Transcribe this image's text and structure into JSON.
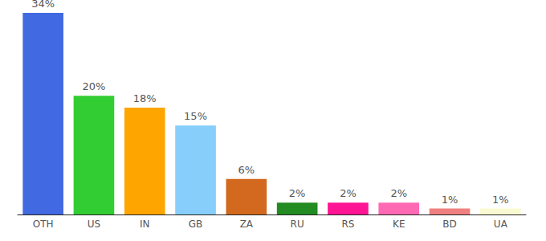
{
  "chart_data": {
    "type": "bar",
    "categories": [
      "OTH",
      "US",
      "IN",
      "GB",
      "ZA",
      "RU",
      "RS",
      "KE",
      "BD",
      "UA"
    ],
    "values": [
      34,
      20,
      18,
      15,
      6,
      2,
      2,
      2,
      1,
      1
    ],
    "value_labels": [
      "34%",
      "20%",
      "18%",
      "15%",
      "6%",
      "2%",
      "2%",
      "2%",
      "1%",
      "1%"
    ],
    "colors": [
      "#4169e1",
      "#32cd32",
      "#ffa500",
      "#87cefa",
      "#d2691e",
      "#228b22",
      "#ff1493",
      "#ff69b4",
      "#f08080",
      "#fafad2"
    ],
    "ylim": [
      0,
      34
    ],
    "data_labels": true,
    "tick_labels": "x",
    "grid": false
  }
}
